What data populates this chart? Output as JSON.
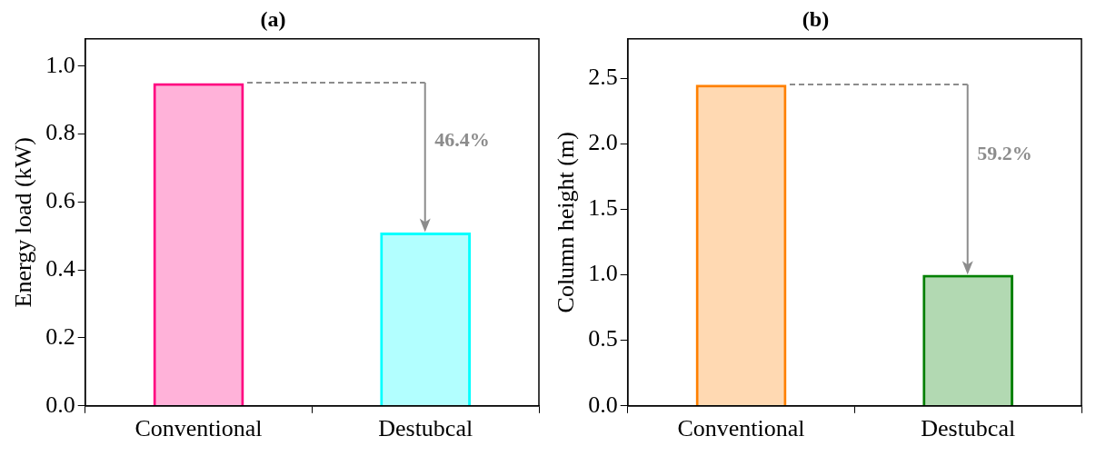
{
  "chart_data": [
    {
      "type": "bar",
      "title": "(a)",
      "ylabel": "Energy load (kW)",
      "categories": [
        "Conventional",
        "Destubcal"
      ],
      "values": [
        0.95,
        0.51
      ],
      "colors": [
        "#ff0080",
        "#00ffff"
      ],
      "ylim": [
        0,
        1.08
      ],
      "yticks": [
        {
          "value": 0,
          "label": "0.0"
        },
        0.2,
        0.4,
        0.6,
        0.8,
        {
          "value": 1,
          "label": "1.0"
        }
      ],
      "grid": false,
      "legend": false,
      "annotations": [
        "46.4%"
      ]
    },
    {
      "type": "bar",
      "title": "(b)",
      "ylabel": "Column height (m)",
      "categories": [
        "Conventional",
        "Destubcal"
      ],
      "values": [
        2.45,
        1.0
      ],
      "colors": [
        "#ff8000",
        "#008000"
      ],
      "ylim": [
        0,
        2.8
      ],
      "yticks": [
        {
          "value": 0,
          "label": "0.0"
        },
        0.5,
        {
          "value": 1,
          "label": "1.0"
        },
        1.5,
        {
          "value": 2,
          "label": "2.0"
        },
        2.5
      ],
      "grid": false,
      "legend": false,
      "annotations": [
        "59.2%"
      ]
    }
  ]
}
